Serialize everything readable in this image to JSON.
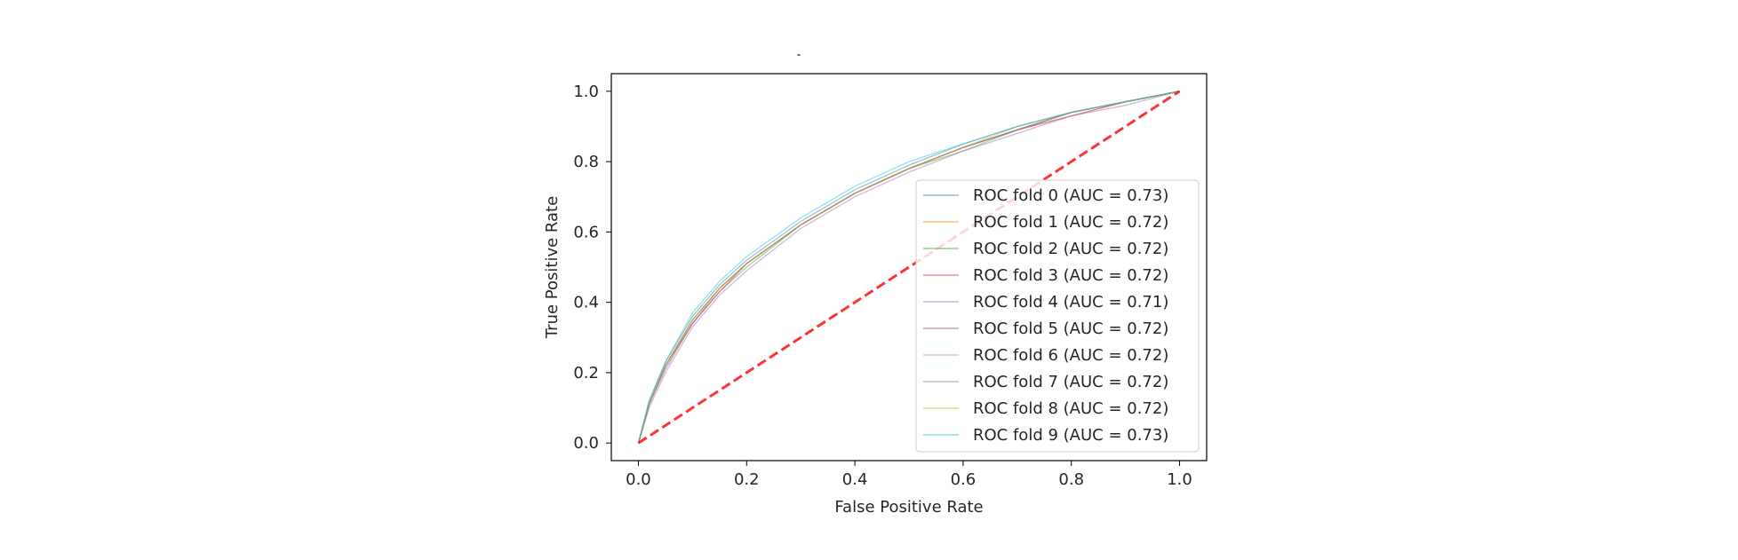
{
  "chart_data": {
    "type": "line",
    "title": "-",
    "xlabel": "False Positive Rate",
    "ylabel": "True Positive Rate",
    "xlim": [
      -0.05,
      1.05
    ],
    "ylim": [
      -0.05,
      1.05
    ],
    "xticks": [
      0.0,
      0.2,
      0.4,
      0.6,
      0.8,
      1.0
    ],
    "yticks": [
      0.0,
      0.2,
      0.4,
      0.6,
      0.8,
      1.0
    ],
    "xtick_labels": [
      "0.0",
      "0.2",
      "0.4",
      "0.6",
      "0.8",
      "1.0"
    ],
    "ytick_labels": [
      "0.0",
      "0.2",
      "0.4",
      "0.6",
      "0.8",
      "1.0"
    ],
    "grid": false,
    "legend_position": "lower-right",
    "series": [
      {
        "name": "ROC fold 0 (AUC = 0.73)",
        "color": "#1f77b4",
        "x": [
          0,
          0.02,
          0.05,
          0.1,
          0.15,
          0.2,
          0.3,
          0.4,
          0.5,
          0.6,
          0.7,
          0.8,
          0.9,
          1.0
        ],
        "y": [
          0,
          0.12,
          0.23,
          0.36,
          0.45,
          0.52,
          0.63,
          0.72,
          0.79,
          0.85,
          0.9,
          0.94,
          0.97,
          1.0
        ]
      },
      {
        "name": "ROC fold 1 (AUC = 0.72)",
        "color": "#ff7f0e",
        "x": [
          0,
          0.02,
          0.05,
          0.1,
          0.15,
          0.2,
          0.3,
          0.4,
          0.5,
          0.6,
          0.7,
          0.8,
          0.9,
          1.0
        ],
        "y": [
          0,
          0.11,
          0.22,
          0.35,
          0.44,
          0.51,
          0.62,
          0.71,
          0.78,
          0.84,
          0.89,
          0.93,
          0.97,
          1.0
        ]
      },
      {
        "name": "ROC fold 2 (AUC = 0.72)",
        "color": "#2ca02c",
        "x": [
          0,
          0.02,
          0.05,
          0.1,
          0.15,
          0.2,
          0.3,
          0.4,
          0.5,
          0.6,
          0.7,
          0.8,
          0.9,
          1.0
        ],
        "y": [
          0,
          0.11,
          0.21,
          0.34,
          0.43,
          0.5,
          0.62,
          0.71,
          0.78,
          0.83,
          0.89,
          0.94,
          0.97,
          1.0
        ]
      },
      {
        "name": "ROC fold 3 (AUC = 0.72)",
        "color": "#d62728",
        "x": [
          0,
          0.02,
          0.05,
          0.1,
          0.15,
          0.2,
          0.3,
          0.4,
          0.5,
          0.6,
          0.7,
          0.8,
          0.9,
          1.0
        ],
        "y": [
          0,
          0.11,
          0.22,
          0.34,
          0.43,
          0.51,
          0.62,
          0.71,
          0.78,
          0.84,
          0.89,
          0.93,
          0.97,
          1.0
        ]
      },
      {
        "name": "ROC fold 4 (AUC = 0.71)",
        "color": "#9467bd",
        "x": [
          0,
          0.02,
          0.05,
          0.1,
          0.15,
          0.2,
          0.3,
          0.4,
          0.5,
          0.6,
          0.7,
          0.8,
          0.9,
          1.0
        ],
        "y": [
          0,
          0.1,
          0.2,
          0.33,
          0.42,
          0.49,
          0.61,
          0.7,
          0.77,
          0.83,
          0.88,
          0.93,
          0.96,
          1.0
        ]
      },
      {
        "name": "ROC fold 5 (AUC = 0.72)",
        "color": "#8c564b",
        "x": [
          0,
          0.02,
          0.05,
          0.1,
          0.15,
          0.2,
          0.3,
          0.4,
          0.5,
          0.6,
          0.7,
          0.8,
          0.9,
          1.0
        ],
        "y": [
          0,
          0.11,
          0.22,
          0.35,
          0.44,
          0.51,
          0.62,
          0.71,
          0.78,
          0.84,
          0.89,
          0.94,
          0.97,
          1.0
        ]
      },
      {
        "name": "ROC fold 6 (AUC = 0.72)",
        "color": "#e377c2",
        "x": [
          0,
          0.02,
          0.05,
          0.1,
          0.15,
          0.2,
          0.3,
          0.4,
          0.5,
          0.6,
          0.7,
          0.8,
          0.9,
          1.0
        ],
        "y": [
          0,
          0.11,
          0.21,
          0.34,
          0.43,
          0.51,
          0.62,
          0.71,
          0.78,
          0.84,
          0.89,
          0.93,
          0.97,
          1.0
        ]
      },
      {
        "name": "ROC fold 7 (AUC = 0.72)",
        "color": "#7f7f7f",
        "x": [
          0,
          0.02,
          0.05,
          0.1,
          0.15,
          0.2,
          0.3,
          0.4,
          0.5,
          0.6,
          0.7,
          0.8,
          0.9,
          1.0
        ],
        "y": [
          0,
          0.11,
          0.22,
          0.34,
          0.44,
          0.51,
          0.62,
          0.71,
          0.78,
          0.84,
          0.89,
          0.94,
          0.97,
          1.0
        ]
      },
      {
        "name": "ROC fold 8 (AUC = 0.72)",
        "color": "#bcbd22",
        "x": [
          0,
          0.02,
          0.05,
          0.1,
          0.15,
          0.2,
          0.3,
          0.4,
          0.5,
          0.6,
          0.7,
          0.8,
          0.9,
          1.0
        ],
        "y": [
          0,
          0.11,
          0.22,
          0.35,
          0.44,
          0.51,
          0.62,
          0.71,
          0.78,
          0.84,
          0.9,
          0.94,
          0.97,
          1.0
        ]
      },
      {
        "name": "ROC fold 9 (AUC = 0.73)",
        "color": "#17becf",
        "x": [
          0,
          0.02,
          0.05,
          0.1,
          0.15,
          0.2,
          0.3,
          0.4,
          0.5,
          0.6,
          0.7,
          0.8,
          0.9,
          1.0
        ],
        "y": [
          0,
          0.12,
          0.23,
          0.37,
          0.46,
          0.53,
          0.64,
          0.73,
          0.8,
          0.85,
          0.9,
          0.94,
          0.97,
          1.0
        ]
      }
    ],
    "reference_line": {
      "x": [
        0,
        1
      ],
      "y": [
        0,
        1
      ],
      "color": "#ff0000",
      "style": "dashed"
    }
  }
}
